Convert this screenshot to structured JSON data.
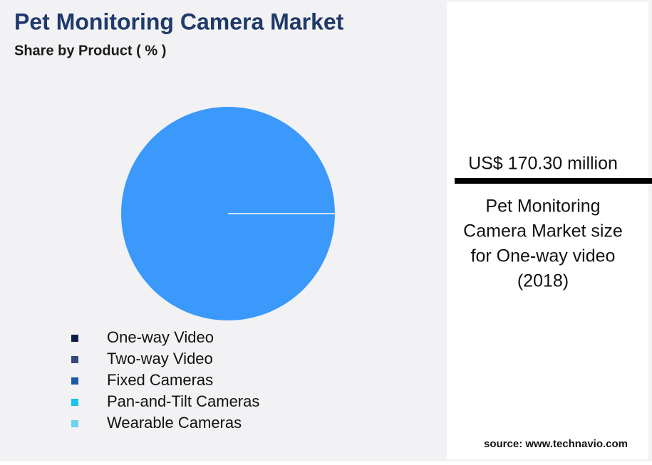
{
  "chart_data": {
    "type": "pie",
    "title": "Pet Monitoring Camera Market",
    "subtitle": "Share by Product ( % )",
    "categories": [
      "One-way Video",
      "Two-way Video",
      "Fixed Cameras",
      "Pan-and-Tilt Cameras",
      "Wearable Cameras"
    ],
    "values": [
      100,
      0,
      0,
      0,
      0
    ],
    "colors": [
      "#0d1e46",
      "#34497a",
      "#1b5aa6",
      "#17c3e6",
      "#6dd3f2"
    ],
    "pie_color": "#3a99fb"
  },
  "callout": {
    "value_text": "US$ 170.30 million",
    "caption_lines": [
      "Pet Monitoring",
      "Camera Market size",
      "for One-way video",
      "(2018)"
    ]
  },
  "source": "source: www.technavio.com"
}
